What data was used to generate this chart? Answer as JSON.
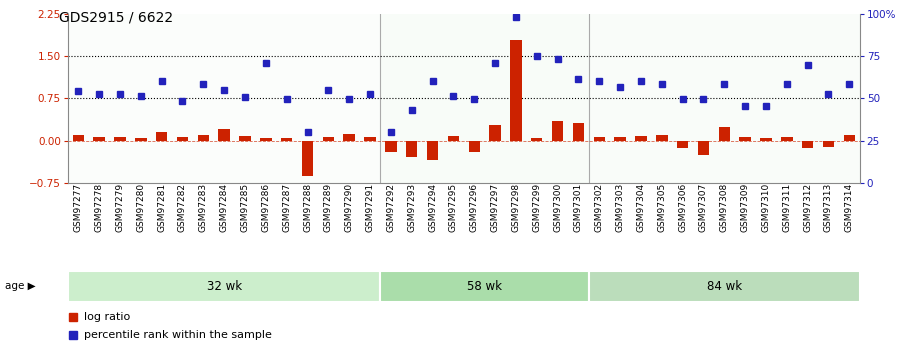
{
  "title": "GDS2915 / 6622",
  "samples": [
    "GSM97277",
    "GSM97278",
    "GSM97279",
    "GSM97280",
    "GSM97281",
    "GSM97282",
    "GSM97283",
    "GSM97284",
    "GSM97285",
    "GSM97286",
    "GSM97287",
    "GSM97288",
    "GSM97289",
    "GSM97290",
    "GSM97291",
    "GSM97292",
    "GSM97293",
    "GSM97294",
    "GSM97295",
    "GSM97296",
    "GSM97297",
    "GSM97298",
    "GSM97299",
    "GSM97300",
    "GSM97301",
    "GSM97302",
    "GSM97303",
    "GSM97304",
    "GSM97305",
    "GSM97306",
    "GSM97307",
    "GSM97308",
    "GSM97309",
    "GSM97310",
    "GSM97311",
    "GSM97312",
    "GSM97313",
    "GSM97314"
  ],
  "log_ratio": [
    0.1,
    0.07,
    0.06,
    0.05,
    0.15,
    0.06,
    0.1,
    0.2,
    0.08,
    0.05,
    0.04,
    -0.62,
    0.07,
    0.12,
    0.07,
    -0.2,
    -0.3,
    -0.34,
    0.09,
    -0.2,
    0.27,
    1.78,
    0.05,
    0.35,
    0.32,
    0.07,
    0.06,
    0.08,
    0.1,
    -0.14,
    -0.26,
    0.25,
    0.06,
    0.05,
    0.06,
    -0.14,
    -0.12,
    0.1
  ],
  "percentile_left": [
    0.88,
    0.82,
    0.82,
    0.8,
    1.05,
    0.7,
    1.0,
    0.9,
    0.78,
    1.38,
    0.73,
    0.15,
    0.9,
    0.73,
    0.82,
    0.15,
    0.55,
    1.05,
    0.8,
    0.73,
    1.38,
    2.2,
    1.5,
    1.45,
    1.1,
    1.05,
    0.95,
    1.05,
    1.0,
    0.73,
    0.73,
    1.0,
    0.62,
    0.62,
    1.0,
    1.35,
    0.82,
    1.0
  ],
  "groups": [
    {
      "label": "32 wk",
      "start": 0,
      "end": 15,
      "color": "#cceecc"
    },
    {
      "label": "58 wk",
      "start": 15,
      "end": 25,
      "color": "#aaddaa"
    },
    {
      "label": "84 wk",
      "start": 25,
      "end": 38,
      "color": "#bbddbb"
    }
  ],
  "group_dividers": [
    15,
    25
  ],
  "ylim_left": [
    -0.75,
    2.25
  ],
  "yticks_left": [
    -0.75,
    0.0,
    0.75,
    1.5,
    2.25
  ],
  "yticks_right": [
    0,
    25,
    50,
    75,
    100
  ],
  "hlines": [
    0.75,
    1.5
  ],
  "bar_color": "#cc2200",
  "dot_color": "#2222bb",
  "title_fontsize": 10,
  "tick_fontsize": 6.5,
  "legend_items": [
    "log ratio",
    "percentile rank within the sample"
  ]
}
